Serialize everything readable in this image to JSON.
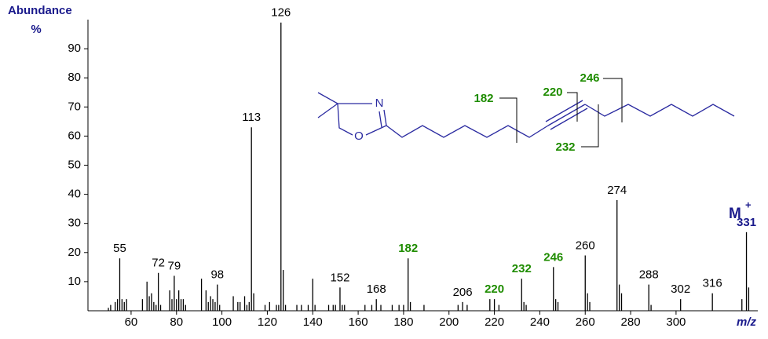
{
  "chart_data": {
    "type": "stick",
    "y_label_line1": "Abundance",
    "y_label_line2": "%",
    "x_label": "m/z",
    "molecular_ion_label": "M",
    "molecular_ion_charge": "+",
    "x": [
      50,
      51,
      53,
      54,
      55,
      56,
      57,
      58,
      65,
      67,
      68,
      69,
      70,
      71,
      72,
      73,
      77,
      78,
      79,
      80,
      81,
      82,
      83,
      84,
      91,
      93,
      94,
      95,
      96,
      97,
      98,
      99,
      105,
      107,
      108,
      110,
      111,
      112,
      113,
      114,
      119,
      121,
      124,
      125,
      126,
      127,
      128,
      133,
      135,
      138,
      140,
      141,
      147,
      149,
      150,
      152,
      153,
      154,
      163,
      166,
      168,
      170,
      175,
      178,
      180,
      182,
      183,
      189,
      204,
      206,
      208,
      218,
      220,
      222,
      232,
      233,
      234,
      246,
      247,
      248,
      260,
      261,
      262,
      274,
      275,
      276,
      288,
      289,
      302,
      316,
      329,
      331,
      332
    ],
    "values": [
      1,
      2,
      3,
      4,
      18,
      4,
      3,
      4,
      4,
      10,
      5,
      6,
      3,
      2,
      13,
      2,
      7,
      4,
      12,
      4,
      7,
      4,
      4,
      2,
      11,
      7,
      3,
      5,
      4,
      3,
      9,
      2,
      5,
      3,
      3,
      5,
      2,
      3,
      63,
      6,
      2,
      3,
      2,
      2,
      99,
      14,
      2,
      2,
      2,
      2,
      11,
      2,
      2,
      2,
      2,
      8,
      2,
      2,
      2,
      2,
      4,
      2,
      2,
      2,
      2,
      18,
      3,
      2,
      2,
      3,
      2,
      4,
      4,
      2,
      11,
      3,
      2,
      15,
      4,
      3,
      19,
      6,
      3,
      38,
      9,
      6,
      9,
      2,
      4,
      6,
      4,
      27,
      8
    ],
    "label_colors": [
      null,
      null,
      null,
      null,
      "#000000",
      null,
      null,
      null,
      null,
      null,
      null,
      null,
      null,
      null,
      "#000000",
      null,
      null,
      null,
      "#000000",
      null,
      null,
      null,
      null,
      null,
      null,
      null,
      null,
      null,
      null,
      null,
      "#000000",
      null,
      null,
      null,
      null,
      null,
      null,
      null,
      "#000000",
      null,
      null,
      null,
      null,
      null,
      "#000000",
      null,
      null,
      null,
      null,
      null,
      null,
      null,
      null,
      null,
      null,
      "#000000",
      null,
      null,
      null,
      null,
      "#000000",
      null,
      null,
      null,
      null,
      "#1e8c00",
      null,
      null,
      null,
      "#000000",
      null,
      null,
      "#1e8c00",
      null,
      "#1e8c00",
      null,
      null,
      "#1e8c00",
      null,
      null,
      "#000000",
      null,
      null,
      "#000000",
      null,
      null,
      "#000000",
      null,
      "#000000",
      "#000000",
      null,
      "#1a1a8c",
      null
    ],
    "color": "#000000",
    "xlim": [
      41,
      336
    ],
    "ylim": [
      0,
      100
    ],
    "xticks": [
      60,
      80,
      100,
      120,
      140,
      160,
      180,
      200,
      220,
      240,
      260,
      280,
      300
    ],
    "yticks": [
      10,
      20,
      30,
      40,
      50,
      60,
      70,
      80,
      90
    ],
    "structure": {
      "atoms": [
        "N",
        "O"
      ],
      "fragment_labels": [
        182,
        220,
        246,
        232
      ]
    }
  }
}
